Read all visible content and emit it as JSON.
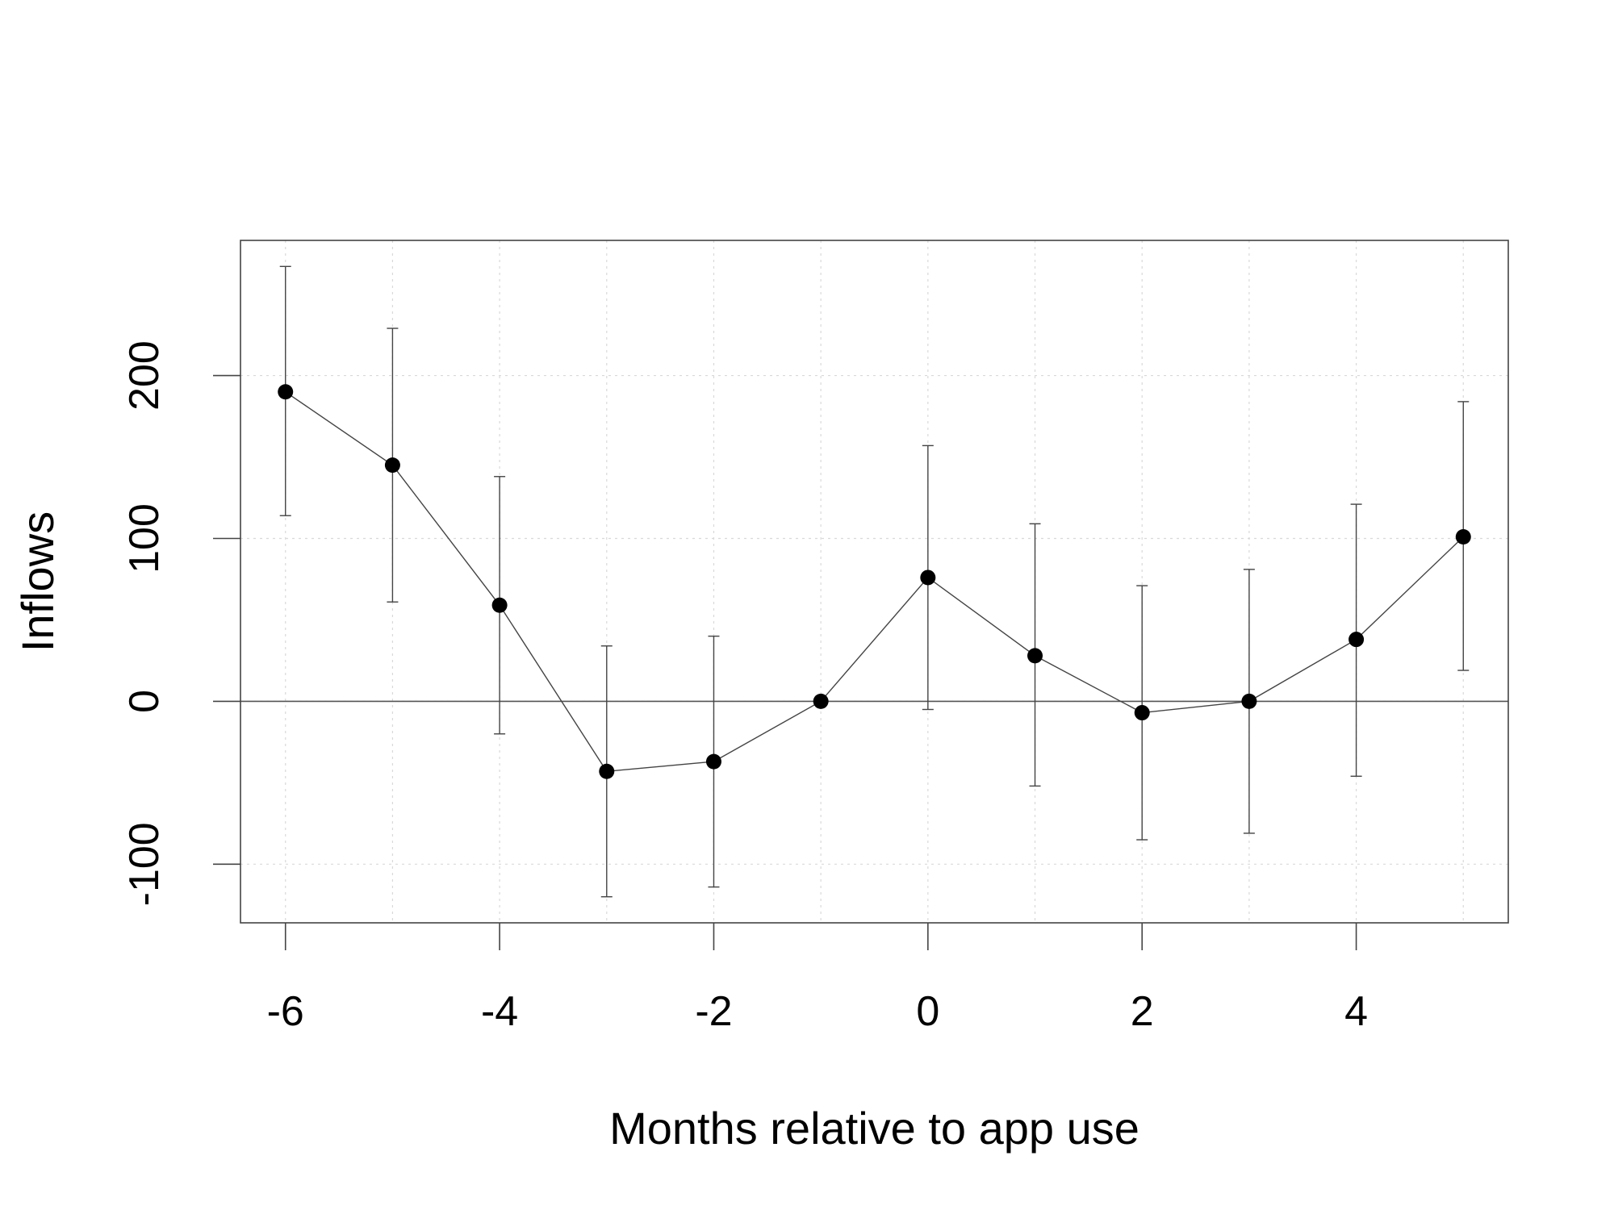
{
  "chart_data": {
    "type": "scatter",
    "title": "",
    "xlabel": "Months relative to app use",
    "ylabel": "Inflows",
    "x": [
      -6,
      -5,
      -4,
      -3,
      -2,
      -1,
      0,
      1,
      2,
      3,
      4,
      5
    ],
    "series": [
      {
        "values": [
          190,
          145,
          59,
          -43,
          -37,
          0,
          76,
          28,
          -7,
          0,
          38,
          101
        ],
        "lower": [
          114,
          61,
          -20,
          -120,
          -114,
          0,
          -5,
          -52,
          -85,
          -81,
          -46,
          19
        ],
        "upper": [
          267,
          229,
          138,
          34,
          40,
          0,
          157,
          109,
          71,
          81,
          121,
          184
        ]
      }
    ],
    "xlim": [
      -6.42,
      5.42
    ],
    "ylim": [
      -136,
      283
    ],
    "xticks": [
      -6,
      -4,
      -2,
      0,
      2,
      4
    ],
    "yticks": [
      -100,
      0,
      100,
      200
    ],
    "xtick_labels": [
      "-6",
      "-4",
      "-2",
      "0",
      "2",
      "4"
    ],
    "ytick_labels": [
      "-100",
      "0",
      "100",
      "200"
    ],
    "zero_line": true,
    "grid": "dotted",
    "legend": "none"
  }
}
